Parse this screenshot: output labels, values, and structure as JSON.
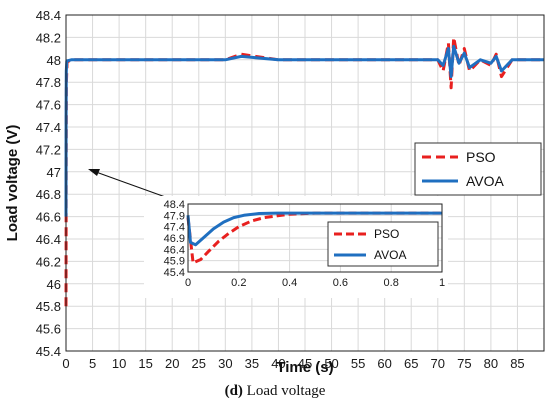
{
  "chart_data": {
    "type": "line",
    "xlabel": "Time (s)",
    "ylabel": "Load voltage (V)",
    "xlim": [
      0,
      90
    ],
    "ylim": [
      45.4,
      48.4
    ],
    "x_ticks": [
      0,
      5,
      10,
      15,
      20,
      25,
      30,
      35,
      40,
      45,
      50,
      55,
      60,
      65,
      70,
      75,
      80,
      85
    ],
    "y_ticks": [
      45.4,
      45.6,
      45.8,
      46,
      46.2,
      46.4,
      46.6,
      46.8,
      47,
      47.2,
      47.4,
      47.6,
      47.8,
      48,
      48.2,
      48.4
    ],
    "grid": true,
    "legend_position": "right",
    "series": [
      {
        "name": "PSO",
        "color": "#e8201f",
        "style": "dashed",
        "x": [
          0,
          0.03,
          0.08,
          0.2,
          1,
          5,
          20,
          25,
          30,
          33,
          40,
          60,
          70,
          71,
          72,
          72.5,
          73,
          74,
          75,
          76,
          78,
          80,
          81,
          82,
          84,
          90
        ],
        "y": [
          45.8,
          47.0,
          47.8,
          47.98,
          48.0,
          48.0,
          48.0,
          48.0,
          48.0,
          48.05,
          48.0,
          48.0,
          48.0,
          47.9,
          48.15,
          47.75,
          48.2,
          47.95,
          48.1,
          47.9,
          48.0,
          47.95,
          48.05,
          47.85,
          48.0,
          48.0
        ]
      },
      {
        "name": "AVOA",
        "color": "#1f6fc0",
        "style": "solid",
        "x": [
          0,
          0.02,
          0.05,
          0.15,
          1,
          5,
          20,
          30,
          33,
          40,
          60,
          70,
          71,
          72,
          72.5,
          73,
          74,
          75,
          76,
          78,
          80,
          81,
          82,
          84,
          90
        ],
        "y": [
          46.6,
          47.5,
          47.9,
          47.99,
          48.0,
          48.0,
          48.0,
          48.0,
          48.03,
          48.0,
          48.0,
          48.0,
          47.95,
          48.1,
          47.85,
          48.12,
          47.97,
          48.06,
          47.93,
          48.0,
          47.97,
          48.03,
          47.9,
          48.0,
          48.0
        ]
      }
    ],
    "inset": {
      "xlim": [
        0,
        1
      ],
      "ylim": [
        45.4,
        48.4
      ],
      "x_ticks": [
        0,
        0.2,
        0.4,
        0.6,
        0.8,
        1
      ],
      "y_ticks": [
        45.4,
        45.9,
        46.4,
        46.9,
        47.4,
        47.9,
        48.4
      ],
      "series": [
        {
          "name": "PSO",
          "color": "#e8201f",
          "style": "dashed",
          "x": [
            0.0,
            0.02,
            0.05,
            0.08,
            0.12,
            0.16,
            0.2,
            0.25,
            0.3,
            0.4,
            0.5,
            0.6,
            0.7,
            0.8,
            0.9,
            1.0
          ],
          "y": [
            47.8,
            45.8,
            45.95,
            46.3,
            46.75,
            47.1,
            47.4,
            47.65,
            47.8,
            47.95,
            48.0,
            48.0,
            48.0,
            48.0,
            48.0,
            48.0
          ]
        },
        {
          "name": "AVOA",
          "color": "#1f6fc0",
          "style": "solid",
          "x": [
            0.0,
            0.01,
            0.03,
            0.06,
            0.1,
            0.14,
            0.18,
            0.22,
            0.28,
            0.35,
            0.45,
            0.6,
            0.8,
            1.0
          ],
          "y": [
            47.9,
            46.7,
            46.6,
            46.9,
            47.3,
            47.6,
            47.8,
            47.9,
            47.98,
            48.0,
            48.0,
            48.0,
            48.0,
            48.0
          ]
        }
      ]
    }
  },
  "caption": {
    "letter": "(d)",
    "text": "Load voltage"
  }
}
